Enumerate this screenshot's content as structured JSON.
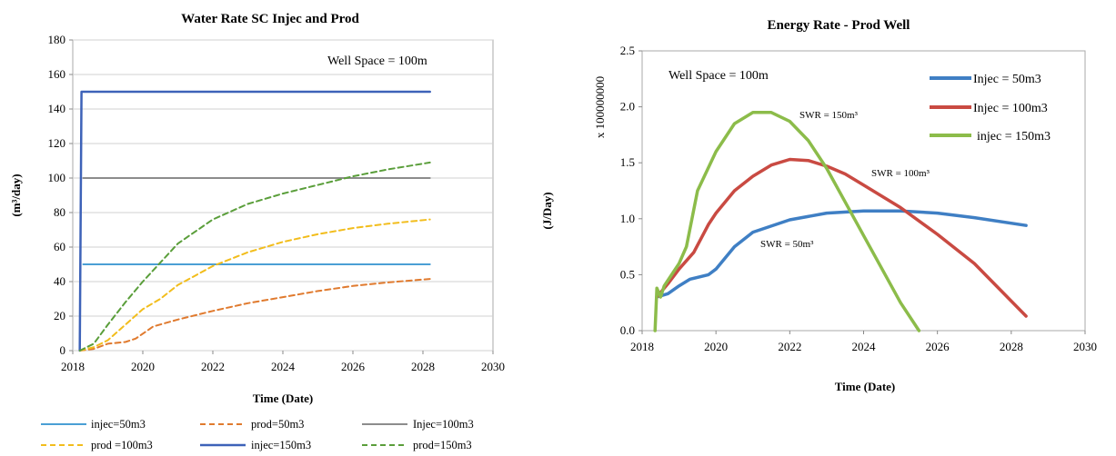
{
  "chart_data": [
    {
      "type": "line",
      "title": "Water Rate SC Injec and Prod",
      "xlabel": "Time (Date)",
      "ylabel": "(m³/day)",
      "xlim": [
        2018,
        2030
      ],
      "ylim": [
        0,
        180
      ],
      "x_ticks": [
        2018,
        2020,
        2022,
        2024,
        2026,
        2028,
        2030
      ],
      "y_ticks": [
        0,
        20,
        40,
        60,
        80,
        100,
        120,
        140,
        160,
        180
      ],
      "annotation": "Well Space = 100m",
      "legend_position": "bottom",
      "series": [
        {
          "name": "injec=50m3",
          "color": "#4a9fd5",
          "dash": "solid",
          "points": [
            [
              2018.3,
              50
            ],
            [
              2028.2,
              50
            ]
          ]
        },
        {
          "name": "prod=50m3",
          "color": "#e07a2e",
          "dash": "dashed",
          "points": [
            [
              2018.2,
              0
            ],
            [
              2018.6,
              1
            ],
            [
              2019.0,
              4
            ],
            [
              2019.5,
              5
            ],
            [
              2019.8,
              7
            ],
            [
              2020.3,
              14
            ],
            [
              2021,
              18
            ],
            [
              2022,
              23
            ],
            [
              2023,
              27.5
            ],
            [
              2024,
              31
            ],
            [
              2025,
              34.5
            ],
            [
              2026,
              37.5
            ],
            [
              2027,
              39.5
            ],
            [
              2028.2,
              41.5
            ]
          ]
        },
        {
          "name": "Injec=100m3",
          "color": "#8c8c8c",
          "dash": "solid",
          "points": [
            [
              2018.3,
              100
            ],
            [
              2028.2,
              100
            ]
          ]
        },
        {
          "name": "prod =100m3",
          "color": "#f2bd1c",
          "dash": "dashed",
          "points": [
            [
              2018.2,
              0
            ],
            [
              2018.6,
              2
            ],
            [
              2019,
              6
            ],
            [
              2019.5,
              15
            ],
            [
              2020,
              24
            ],
            [
              2020.5,
              30
            ],
            [
              2021,
              38
            ],
            [
              2022,
              49
            ],
            [
              2023,
              57
            ],
            [
              2024,
              63
            ],
            [
              2025,
              67.5
            ],
            [
              2026,
              71
            ],
            [
              2027,
              73.5
            ],
            [
              2028.2,
              76
            ]
          ]
        },
        {
          "name": "injec=150m3",
          "color": "#3d62b8",
          "dash": "solid",
          "points": [
            [
              2018.2,
              0
            ],
            [
              2018.25,
              150
            ],
            [
              2028.2,
              150
            ]
          ]
        },
        {
          "name": "prod=150m3",
          "color": "#5a9e3a",
          "dash": "dashed",
          "points": [
            [
              2018.2,
              0
            ],
            [
              2018.6,
              4
            ],
            [
              2019,
              15
            ],
            [
              2019.5,
              28
            ],
            [
              2020,
              40
            ],
            [
              2020.5,
              51
            ],
            [
              2021,
              62
            ],
            [
              2022,
              76
            ],
            [
              2023,
              85
            ],
            [
              2024,
              91
            ],
            [
              2025,
              96
            ],
            [
              2026,
              101
            ],
            [
              2027,
              105
            ],
            [
              2028.2,
              109
            ]
          ]
        }
      ]
    },
    {
      "type": "line",
      "title": "Energy Rate - Prod Well",
      "xlabel": "Time (Date)",
      "ylabel": "(J/Day)",
      "multiplier_label": "x 100000000",
      "xlim": [
        2018,
        2030
      ],
      "ylim": [
        0,
        2.5
      ],
      "x_ticks": [
        2018,
        2020,
        2022,
        2024,
        2026,
        2028,
        2030
      ],
      "y_ticks": [
        0.0,
        0.5,
        1.0,
        1.5,
        2.0,
        2.5
      ],
      "annotation": "Well Space = 100m",
      "legend_position": "top-right",
      "series": [
        {
          "name": "Injec = 50m3",
          "label": "SWR = 50m³",
          "color": "#3f7fc4",
          "points": [
            [
              2018.4,
              0.3
            ],
            [
              2018.7,
              0.33
            ],
            [
              2019,
              0.4
            ],
            [
              2019.3,
              0.46
            ],
            [
              2019.8,
              0.5
            ],
            [
              2020,
              0.55
            ],
            [
              2020.5,
              0.75
            ],
            [
              2021,
              0.88
            ],
            [
              2022,
              0.99
            ],
            [
              2023,
              1.05
            ],
            [
              2024,
              1.07
            ],
            [
              2025,
              1.07
            ],
            [
              2026,
              1.05
            ],
            [
              2027,
              1.01
            ],
            [
              2028.4,
              0.94
            ]
          ]
        },
        {
          "name": "Injec = 100m3",
          "label": "SWR = 100m³",
          "color": "#c94a42",
          "points": [
            [
              2018.4,
              0.3
            ],
            [
              2018.7,
              0.42
            ],
            [
              2019,
              0.55
            ],
            [
              2019.4,
              0.7
            ],
            [
              2019.8,
              0.95
            ],
            [
              2020,
              1.05
            ],
            [
              2020.5,
              1.25
            ],
            [
              2021,
              1.38
            ],
            [
              2021.5,
              1.48
            ],
            [
              2022,
              1.53
            ],
            [
              2022.5,
              1.52
            ],
            [
              2023,
              1.47
            ],
            [
              2023.5,
              1.4
            ],
            [
              2024,
              1.3
            ],
            [
              2025,
              1.1
            ],
            [
              2026,
              0.86
            ],
            [
              2027,
              0.6
            ],
            [
              2028.4,
              0.13
            ]
          ]
        },
        {
          "name": "injec = 150m3",
          "label": "SWR = 150m³",
          "color": "#8cbc4a",
          "points": [
            [
              2018.35,
              0
            ],
            [
              2018.4,
              0.38
            ],
            [
              2018.5,
              0.3
            ],
            [
              2018.6,
              0.4
            ],
            [
              2019,
              0.6
            ],
            [
              2019.2,
              0.75
            ],
            [
              2019.5,
              1.25
            ],
            [
              2020,
              1.6
            ],
            [
              2020.5,
              1.85
            ],
            [
              2021,
              1.95
            ],
            [
              2021.5,
              1.95
            ],
            [
              2022,
              1.87
            ],
            [
              2022.5,
              1.7
            ],
            [
              2023,
              1.45
            ],
            [
              2023.5,
              1.15
            ],
            [
              2024,
              0.85
            ],
            [
              2024.5,
              0.55
            ],
            [
              2025,
              0.25
            ],
            [
              2025.5,
              0
            ]
          ]
        }
      ]
    }
  ]
}
